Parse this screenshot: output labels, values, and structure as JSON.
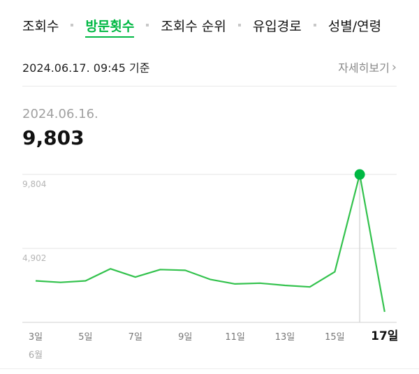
{
  "tabs": [
    {
      "label": "조회수",
      "active": false
    },
    {
      "label": "방문횟수",
      "active": true
    },
    {
      "label": "조회수 순위",
      "active": false
    },
    {
      "label": "유입경로",
      "active": false
    },
    {
      "label": "성별/연령",
      "active": false
    }
  ],
  "basis_text": "2024.06.17. 09:45 기준",
  "more_link": "자세히보기",
  "selected": {
    "date": "2024.06.16.",
    "value": "9,803"
  },
  "colors": {
    "accent": "#00b843",
    "line": "#33c24d"
  },
  "chart_data": {
    "type": "line",
    "x": [
      3,
      4,
      5,
      6,
      7,
      8,
      9,
      10,
      11,
      12,
      13,
      14,
      15,
      16,
      17
    ],
    "series": [
      {
        "values": [
          2750,
          2650,
          2750,
          3550,
          3000,
          3500,
          3450,
          2850,
          2550,
          2600,
          2450,
          2350,
          3350,
          9803,
          700
        ]
      }
    ],
    "x_tick_values": [
      3,
      5,
      7,
      9,
      11,
      13,
      15,
      17
    ],
    "x_tick_labels": [
      "3일",
      "5일",
      "7일",
      "9일",
      "11일",
      "13일",
      "15일",
      "17일"
    ],
    "month_label": "6월",
    "y_ticks": [
      4902,
      9804
    ],
    "y_tick_labels": [
      "4,902",
      "9,804"
    ],
    "ylim": [
      0,
      9804
    ],
    "highlight_x": 16,
    "highlight_tick": 17
  }
}
